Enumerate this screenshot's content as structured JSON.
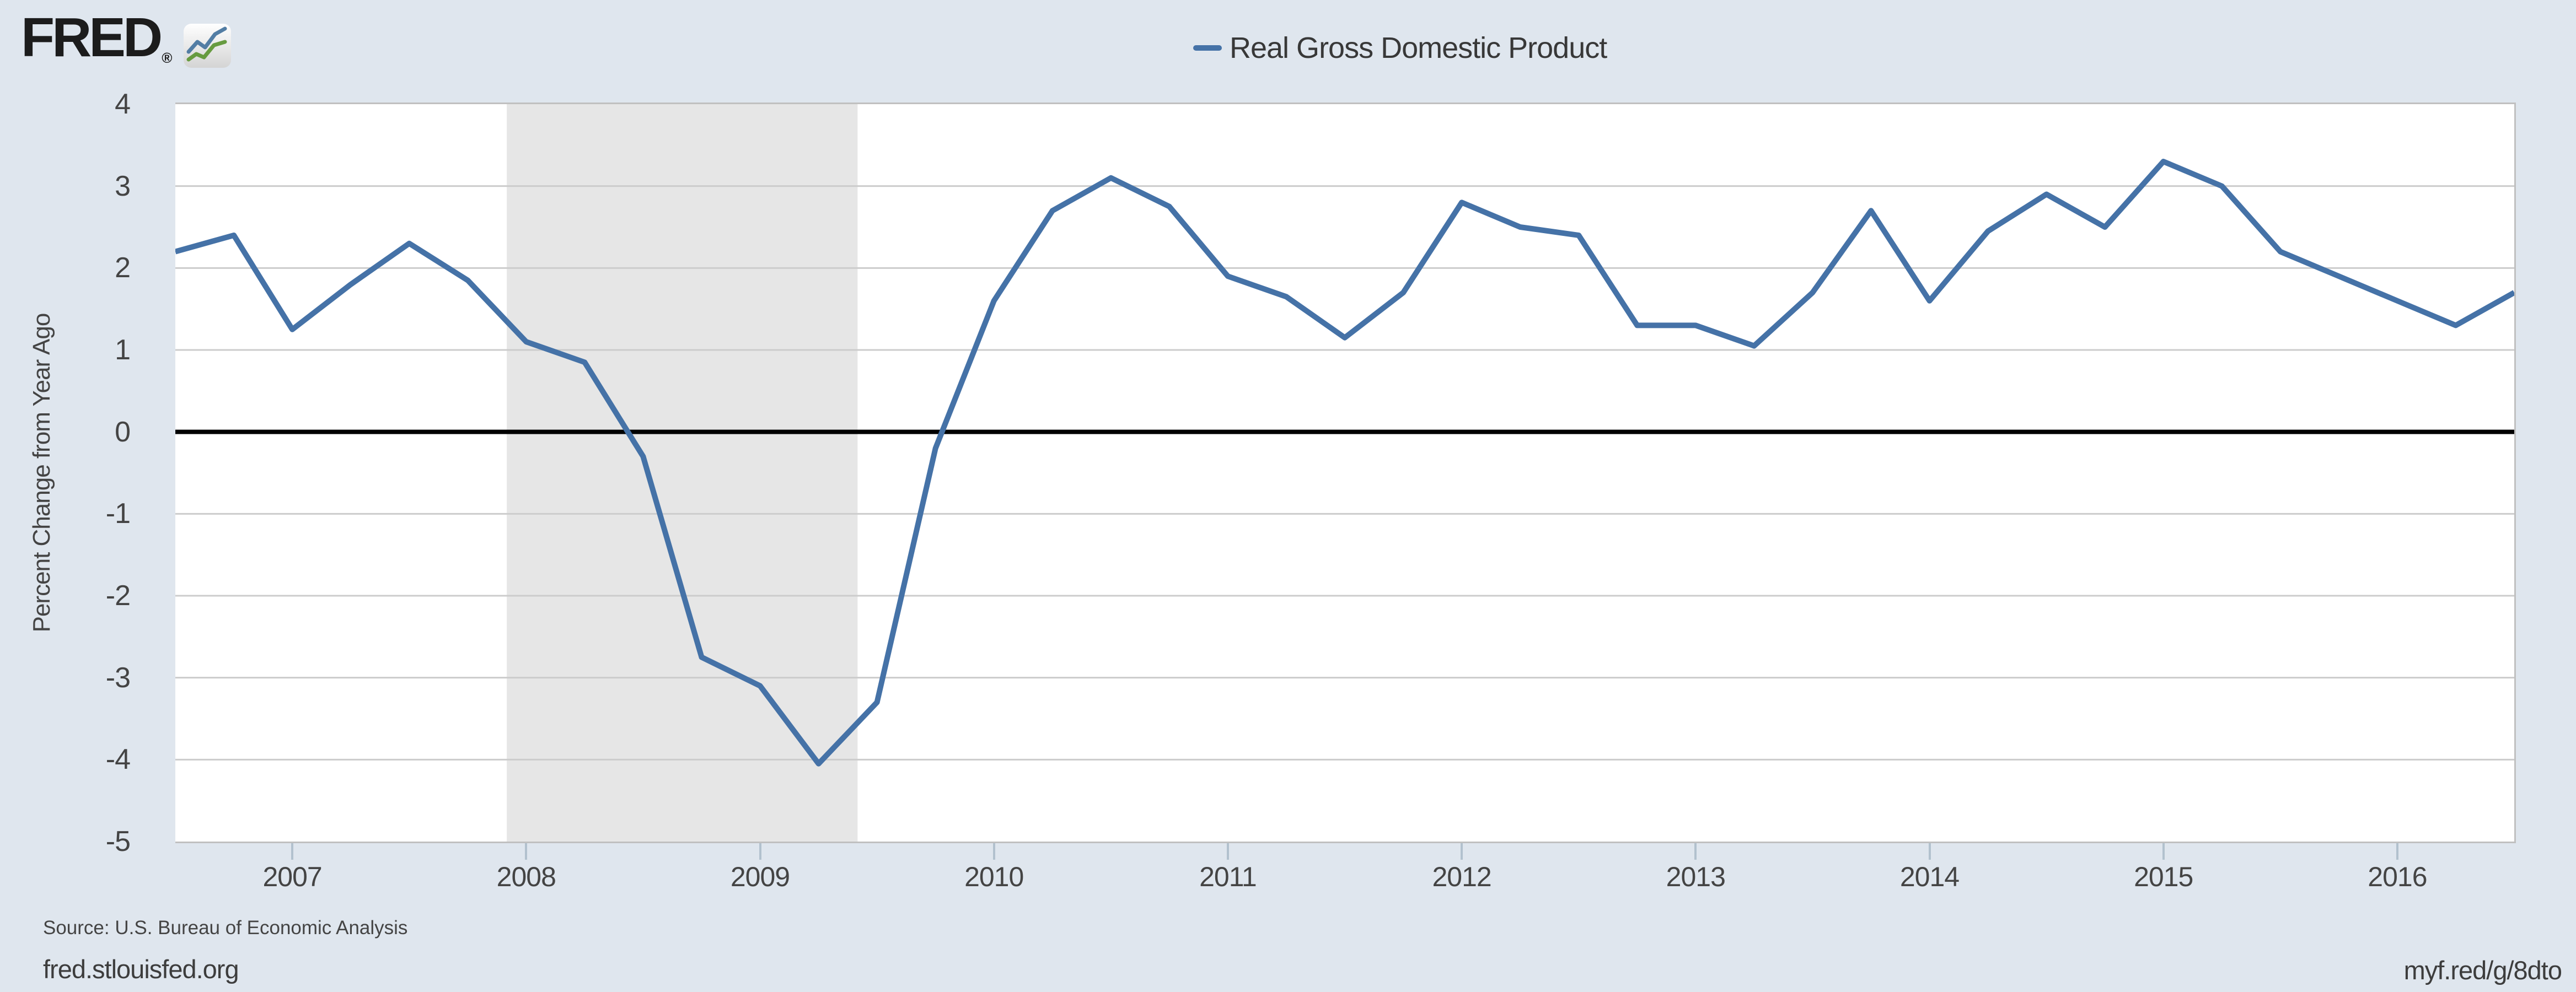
{
  "header": {
    "logo_text": "FRED",
    "logo_registered": "®",
    "logo_icon": "fred-line-chart-icon"
  },
  "legend": {
    "series_label": "Real Gross Domestic Product",
    "swatch_color": "#4572a7"
  },
  "y_axis": {
    "title": "Percent Change from Year Ago",
    "ticks": [
      4,
      3,
      2,
      1,
      0,
      -1,
      -2,
      -3,
      -4,
      -5
    ]
  },
  "x_axis": {
    "ticks": [
      2007,
      2008,
      2009,
      2010,
      2011,
      2012,
      2013,
      2014,
      2015,
      2016
    ]
  },
  "footer": {
    "source": "Source: U.S. Bureau of Economic Analysis",
    "site": "fred.stlouisfed.org",
    "short_url": "myf.red/g/8dto"
  },
  "colors": {
    "background": "#dfe6ee",
    "plot_background": "#ffffff",
    "gridline": "#cccccc",
    "plot_border": "#c0c0c0",
    "zero_line": "#000000",
    "recession_band": "#e6e6e6",
    "line": "#4572a7",
    "tick_mark": "#b2c1ce",
    "axis_text": "#444444",
    "legend_text": "#383838",
    "footer_text": "#3d3d3d",
    "logo_text": "#1c1c1c"
  },
  "chart_data": {
    "type": "line",
    "title": "Real Gross Domestic Product",
    "ylabel": "Percent Change from Year Ago",
    "legend_position": "top-center",
    "grid": true,
    "ylim": [
      -5,
      4
    ],
    "x_range_years": [
      2006.5,
      2016.5
    ],
    "recession_band_years": [
      2007.917,
      2009.417
    ],
    "x": [
      "2006-07",
      "2006-10",
      "2007-01",
      "2007-04",
      "2007-07",
      "2007-10",
      "2008-01",
      "2008-04",
      "2008-07",
      "2008-10",
      "2009-01",
      "2009-04",
      "2009-07",
      "2009-10",
      "2010-01",
      "2010-04",
      "2010-07",
      "2010-10",
      "2011-01",
      "2011-04",
      "2011-07",
      "2011-10",
      "2012-01",
      "2012-04",
      "2012-07",
      "2012-10",
      "2013-01",
      "2013-04",
      "2013-07",
      "2013-10",
      "2014-01",
      "2014-04",
      "2014-07",
      "2014-10",
      "2015-01",
      "2015-04",
      "2015-07",
      "2015-10",
      "2016-01",
      "2016-04",
      "2016-07"
    ],
    "values": [
      2.2,
      2.4,
      1.25,
      1.8,
      2.3,
      1.85,
      1.1,
      0.85,
      -0.3,
      -2.75,
      -3.1,
      -4.05,
      -3.3,
      -0.2,
      1.6,
      2.7,
      3.1,
      2.75,
      1.9,
      1.65,
      1.15,
      1.7,
      2.8,
      2.5,
      2.4,
      1.3,
      1.3,
      1.05,
      1.7,
      2.7,
      1.6,
      2.45,
      2.9,
      2.5,
      3.3,
      3.0,
      2.2,
      1.9,
      1.6,
      1.3,
      1.7
    ]
  }
}
